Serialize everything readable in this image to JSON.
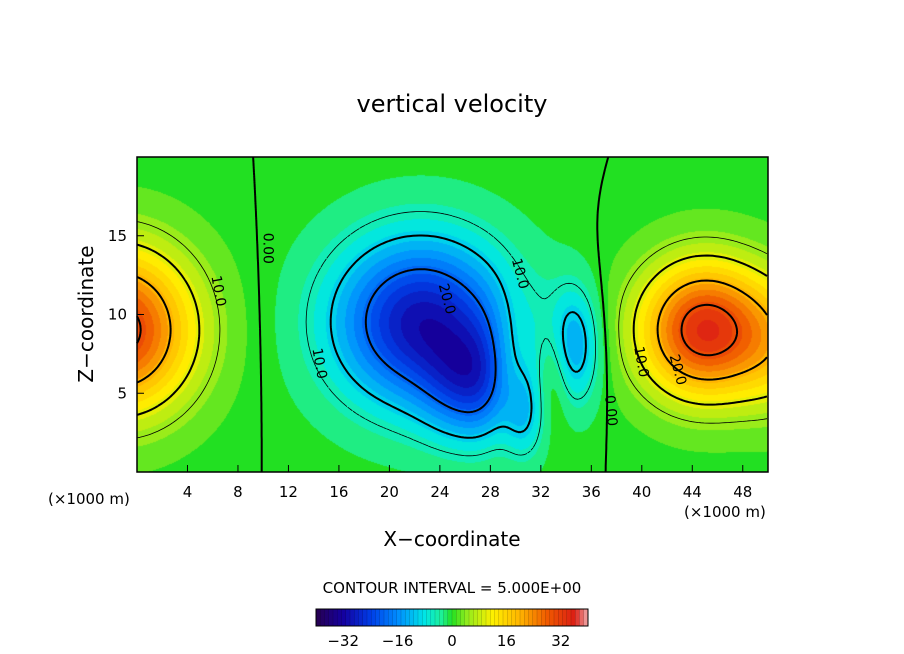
{
  "chart_data": {
    "type": "contour",
    "title": "vertical velocity",
    "xlabel": "X−coordinate",
    "ylabel": "Z−coordinate",
    "x_unit_left": "(×1000 m)",
    "x_unit_right": "(×1000 m)",
    "xlim": [
      0,
      50
    ],
    "ylim": [
      0,
      20
    ],
    "x_ticks": [
      4,
      8,
      12,
      16,
      20,
      24,
      28,
      32,
      36,
      40,
      44,
      48
    ],
    "y_ticks": [
      5,
      10,
      15
    ],
    "x_tick_labels": [
      "4",
      "8",
      "12",
      "16",
      "20",
      "24",
      "28",
      "32",
      "36",
      "40",
      "44",
      "48"
    ],
    "y_tick_labels": [
      "5",
      "10",
      "15"
    ],
    "contour_interval_text": "CONTOUR INTERVAL = 5.000E+00",
    "contour_interval": 5.0,
    "colorbar": {
      "range": [
        -40,
        40
      ],
      "ticks": [
        -32,
        -16,
        0,
        16,
        32
      ],
      "tick_labels": [
        "−32",
        "−16",
        "0",
        "16",
        "32"
      ]
    },
    "contour_labels": [
      {
        "text": "10.0",
        "x": 6.5,
        "z": 11.5,
        "rot": 80
      },
      {
        "text": "0.00",
        "x": 10.4,
        "z": 14.2,
        "rot": 90
      },
      {
        "text": "20.0",
        "x": 24.6,
        "z": 11.0,
        "rot": 75
      },
      {
        "text": "10.0",
        "x": 30.4,
        "z": 12.6,
        "rot": 75
      },
      {
        "text": "10.0",
        "x": 14.5,
        "z": 6.9,
        "rot": 80
      },
      {
        "text": "0.00",
        "x": 37.6,
        "z": 3.9,
        "rot": 85
      },
      {
        "text": "10.0",
        "x": 40.0,
        "z": 7.0,
        "rot": 80
      },
      {
        "text": "20.0",
        "x": 42.9,
        "z": 6.5,
        "rot": 75
      }
    ],
    "field_features": [
      {
        "kind": "updraft",
        "x": 0.0,
        "z": 9.0,
        "peak": 30
      },
      {
        "kind": "downdraft",
        "x": 22.5,
        "z": 9.5,
        "peak": -30
      },
      {
        "kind": "updraft",
        "x": 45.0,
        "z": 9.0,
        "peak": 33
      },
      {
        "kind": "downdraft",
        "x": 34.5,
        "z": 8.0,
        "peak": -14
      }
    ],
    "colors": {
      "strong_negative": "#1a00a0",
      "negative": "#0066ff",
      "zero": "#22e022",
      "positive": "#ffd000",
      "strong_positive": "#e63000"
    }
  }
}
